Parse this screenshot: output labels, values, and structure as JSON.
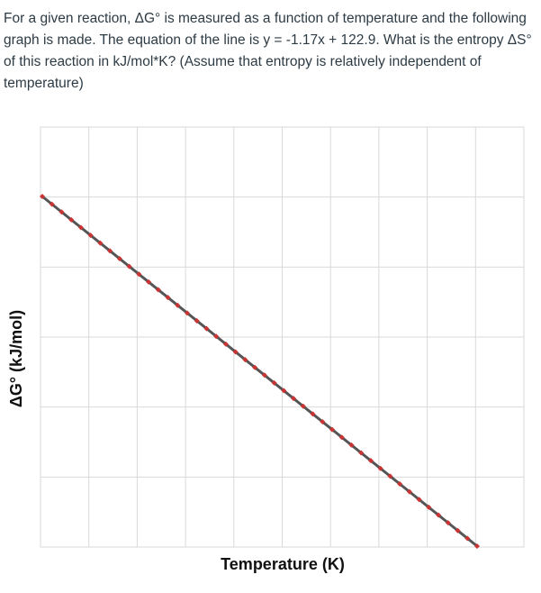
{
  "question": {
    "text": "For a given reaction, ΔG° is measured as a function of temperature and the following graph is made. The equation of the line is y = -1.17x + 122.9. What is the entropy ΔS° of this reaction in kJ/mol*K? (Assume that entropy is relatively independent of temperature)"
  },
  "chart_data": {
    "type": "scatter",
    "xlabel": "Temperature (K)",
    "ylabel": "ΔG° (kJ/mol)",
    "grid": true,
    "x_gridlines": 10,
    "y_gridlines": 6,
    "trendline": {
      "slope": -1.17,
      "intercept": 122.9
    },
    "colors": {
      "points": "#cc3333",
      "trendline": "#555555",
      "grid": "#d9d9d9"
    },
    "points": [
      [
        0,
        122.9
      ],
      [
        2,
        120.56
      ],
      [
        4,
        118.22
      ],
      [
        6,
        115.88
      ],
      [
        8,
        113.54
      ],
      [
        10,
        111.2
      ],
      [
        12,
        108.86
      ],
      [
        14,
        106.52
      ],
      [
        16,
        104.18
      ],
      [
        18,
        101.84
      ],
      [
        20,
        99.5
      ],
      [
        22,
        97.16
      ],
      [
        24,
        94.82
      ],
      [
        26,
        92.48
      ],
      [
        28,
        90.14
      ],
      [
        30,
        87.8
      ],
      [
        32,
        85.46
      ],
      [
        34,
        83.12
      ],
      [
        36,
        80.78
      ],
      [
        38,
        78.44
      ],
      [
        40,
        76.1
      ],
      [
        42,
        73.76
      ],
      [
        44,
        71.42
      ],
      [
        46,
        69.08
      ],
      [
        48,
        66.74
      ],
      [
        50,
        64.4
      ],
      [
        52,
        62.06
      ],
      [
        54,
        59.72
      ],
      [
        56,
        57.38
      ],
      [
        58,
        55.04
      ],
      [
        60,
        52.7
      ],
      [
        62,
        50.36
      ],
      [
        64,
        48.02
      ],
      [
        66,
        45.68
      ],
      [
        68,
        43.34
      ],
      [
        70,
        41.0
      ],
      [
        72,
        38.66
      ],
      [
        74,
        36.32
      ],
      [
        76,
        33.98
      ],
      [
        78,
        31.64
      ],
      [
        80,
        29.3
      ],
      [
        82,
        26.96
      ],
      [
        84,
        24.62
      ],
      [
        86,
        22.28
      ],
      [
        88,
        19.94
      ],
      [
        90,
        17.6
      ]
    ]
  }
}
